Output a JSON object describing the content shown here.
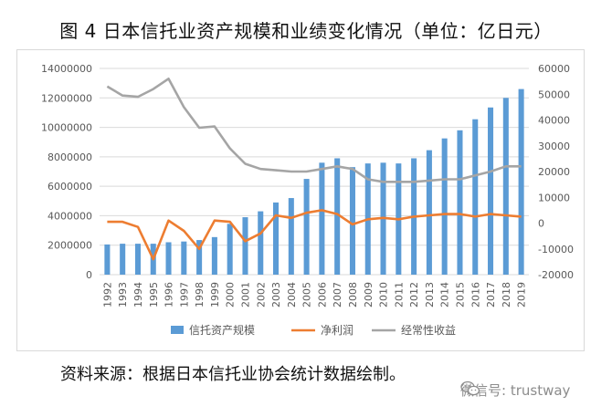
{
  "title": "图 4  日本信托业资产规模和业绩变化情况（单位：亿日元）",
  "source": "资料来源：根据日本信托业协会统计数据绘制。",
  "watermark": "微信号: trustway",
  "colors": {
    "bars": "#5b9bd5",
    "net_profit": "#ed7d31",
    "recurring": "#a5a5a5"
  },
  "chart_data": {
    "type": "bar",
    "categories": [
      "1992",
      "1993",
      "1994",
      "1995",
      "1996",
      "1997",
      "1998",
      "1999",
      "2000",
      "2001",
      "2002",
      "2003",
      "2004",
      "2005",
      "2006",
      "2007",
      "2008",
      "2009",
      "2010",
      "2011",
      "2012",
      "2013",
      "2014",
      "2015",
      "2016",
      "2017",
      "2018",
      "2019"
    ],
    "left_axis": {
      "ylim": [
        0,
        14000000
      ],
      "ticks": [
        "0",
        "2000000",
        "4000000",
        "6000000",
        "8000000",
        "10000000",
        "12000000",
        "14000000"
      ]
    },
    "right_axis": {
      "ylim": [
        -20000,
        60000
      ],
      "ticks": [
        "-20000",
        "-10000",
        "0",
        "10000",
        "20000",
        "30000",
        "40000",
        "50000",
        "60000"
      ]
    },
    "series": [
      {
        "name": "信托资产规模",
        "type": "bar",
        "axis": "left",
        "values": [
          2050000,
          2100000,
          2100000,
          2100000,
          2200000,
          2250000,
          2350000,
          2550000,
          3450000,
          3900000,
          4300000,
          4900000,
          5200000,
          6500000,
          7600000,
          7900000,
          7300000,
          7550000,
          7600000,
          7550000,
          7900000,
          8450000,
          9250000,
          9800000,
          10550000,
          11350000,
          12000000,
          12600000
        ]
      },
      {
        "name": "净利润",
        "type": "line",
        "axis": "right",
        "values": [
          500,
          500,
          -1500,
          -14000,
          1000,
          -3000,
          -10000,
          1000,
          500,
          -7000,
          -4000,
          3000,
          2000,
          4000,
          5000,
          3500,
          -500,
          1500,
          2000,
          1500,
          2500,
          3000,
          3500,
          3500,
          2500,
          3500,
          3000,
          2500
        ]
      },
      {
        "name": "经常性收益",
        "type": "line",
        "axis": "right",
        "values": [
          53000,
          49500,
          49000,
          52000,
          56000,
          45000,
          37000,
          37500,
          29000,
          23000,
          21000,
          20500,
          20000,
          20000,
          21000,
          22000,
          21000,
          17000,
          16000,
          16000,
          16000,
          16500,
          17000,
          17000,
          18500,
          20000,
          22000,
          22000
        ]
      }
    ]
  }
}
